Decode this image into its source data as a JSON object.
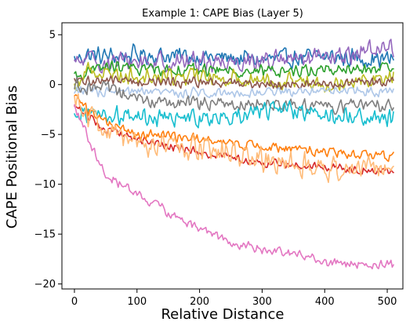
{
  "chart_data": {
    "type": "line",
    "title": "Example 1: CAPE Bias (Layer 5)",
    "xlabel": "Relative Distance",
    "ylabel": "CAPE Positional Bias",
    "xlim": [
      -20,
      525
    ],
    "ylim": [
      -20.5,
      6.2
    ],
    "xticks": [
      0,
      100,
      200,
      300,
      400,
      500
    ],
    "yticks": [
      5,
      0,
      -5,
      -10,
      -15,
      -20
    ],
    "ytick_labels": [
      "5",
      "0",
      "−5",
      "−10",
      "−15",
      "−20"
    ],
    "grid": false,
    "legend": "none",
    "series": [
      {
        "color": "#1f77b4",
        "x": [
          0,
          20,
          50,
          100,
          200,
          300,
          400,
          510
        ],
        "y": [
          2.5,
          3.0,
          2.8,
          3.0,
          2.8,
          2.5,
          2.8,
          2.5
        ],
        "noise": 0.9
      },
      {
        "color": "#9467bd",
        "x": [
          0,
          20,
          50,
          100,
          200,
          300,
          400,
          510
        ],
        "y": [
          2.0,
          2.5,
          2.2,
          2.3,
          2.3,
          2.4,
          2.5,
          4.0
        ],
        "noise": 1.0
      },
      {
        "color": "#2ca02c",
        "x": [
          0,
          50,
          100,
          200,
          300,
          400,
          510
        ],
        "y": [
          0.8,
          1.8,
          1.6,
          1.5,
          1.3,
          1.5,
          1.5
        ],
        "noise": 0.6
      },
      {
        "color": "#bcbd22",
        "x": [
          0,
          20,
          50,
          100,
          200,
          300,
          400,
          510
        ],
        "y": [
          -0.5,
          1.5,
          1.2,
          0.8,
          0.8,
          0.5,
          0.2,
          0.8
        ],
        "noise": 0.8
      },
      {
        "color": "#8c564b",
        "x": [
          0,
          50,
          100,
          200,
          300,
          400,
          510
        ],
        "y": [
          0.2,
          0.5,
          0.3,
          0.2,
          0.1,
          0.0,
          0.3
        ],
        "noise": 0.5
      },
      {
        "color": "#aec7e8",
        "x": [
          0,
          50,
          100,
          200,
          300,
          400,
          510
        ],
        "y": [
          -0.5,
          -0.8,
          -0.8,
          -0.8,
          -0.8,
          -0.5,
          -0.8
        ],
        "noise": 0.5
      },
      {
        "color": "#7f7f7f",
        "x": [
          0,
          50,
          100,
          200,
          300,
          400,
          510
        ],
        "y": [
          0.0,
          -0.5,
          -1.5,
          -2.0,
          -1.8,
          -2.2,
          -2.0
        ],
        "noise": 0.7
      },
      {
        "color": "#17becf",
        "x": [
          0,
          20,
          50,
          100,
          200,
          300,
          400,
          510
        ],
        "y": [
          -2.5,
          -2.8,
          -3.0,
          -3.2,
          -3.5,
          -2.5,
          -3.0,
          -3.5
        ],
        "noise": 0.9
      },
      {
        "color": "#d62728",
        "x": [
          0,
          20,
          50,
          100,
          200,
          300,
          400,
          510
        ],
        "y": [
          -2.0,
          -3.0,
          -4.5,
          -5.5,
          -6.8,
          -7.8,
          -8.3,
          -8.7
        ],
        "noise": 0.4
      },
      {
        "color": "#ff7f0e",
        "x": [
          0,
          20,
          50,
          100,
          200,
          300,
          400,
          510
        ],
        "y": [
          -1.0,
          -2.5,
          -3.8,
          -5.0,
          -5.5,
          -6.2,
          -6.8,
          -7.3
        ],
        "noise": 0.5
      },
      {
        "color": "#ffbb78",
        "x": [
          0,
          20,
          50,
          100,
          200,
          300,
          400,
          510
        ],
        "y": [
          -1.0,
          -3.0,
          -4.8,
          -6.0,
          -6.5,
          -7.5,
          -8.5,
          -8.0
        ],
        "noise": 1.2
      },
      {
        "color": "#e377c2",
        "x": [
          0,
          10,
          30,
          50,
          100,
          150,
          200,
          250,
          300,
          350,
          400,
          450,
          510
        ],
        "y": [
          -2.0,
          -3.5,
          -6.5,
          -9.0,
          -11.0,
          -12.8,
          -14.5,
          -15.8,
          -16.5,
          -17.0,
          -17.8,
          -18.0,
          -18.2
        ],
        "noise": 0.5
      }
    ]
  }
}
